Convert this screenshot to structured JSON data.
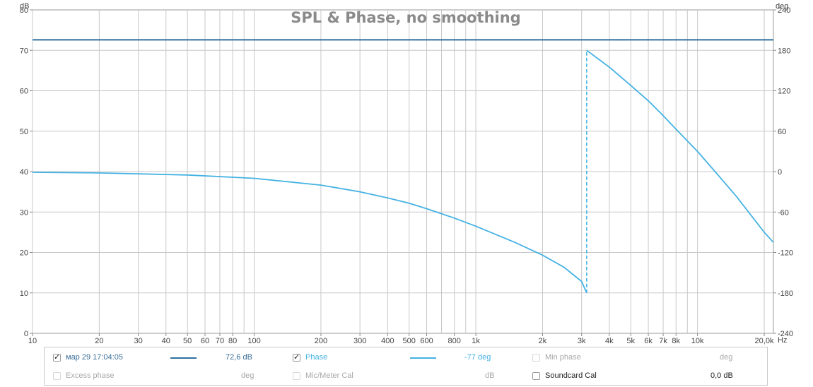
{
  "chart_data": {
    "type": "line",
    "title": "SPL & Phase, no smoothing",
    "x_scale": "log",
    "x_unit": "Hz",
    "xlim": [
      10,
      22000
    ],
    "x_ticks": [
      {
        "v": 10,
        "l": "10"
      },
      {
        "v": 20,
        "l": "20"
      },
      {
        "v": 30,
        "l": "30"
      },
      {
        "v": 40,
        "l": "40"
      },
      {
        "v": 50,
        "l": "50"
      },
      {
        "v": 60,
        "l": "60"
      },
      {
        "v": 70,
        "l": "70"
      },
      {
        "v": 80,
        "l": "80"
      },
      {
        "v": 100,
        "l": "100"
      },
      {
        "v": 200,
        "l": "200"
      },
      {
        "v": 300,
        "l": "300"
      },
      {
        "v": 400,
        "l": "400"
      },
      {
        "v": 500,
        "l": "500"
      },
      {
        "v": 600,
        "l": "600"
      },
      {
        "v": 800,
        "l": "800"
      },
      {
        "v": 1000,
        "l": "1k"
      },
      {
        "v": 2000,
        "l": "2k"
      },
      {
        "v": 3000,
        "l": "3k"
      },
      {
        "v": 4000,
        "l": "4k"
      },
      {
        "v": 5000,
        "l": "5k"
      },
      {
        "v": 6000,
        "l": "6k"
      },
      {
        "v": 7000,
        "l": "7k"
      },
      {
        "v": 8000,
        "l": "8k"
      },
      {
        "v": 10000,
        "l": "10k"
      },
      {
        "v": 20000,
        "l": "20,0k"
      }
    ],
    "x_gridlines": [
      10,
      20,
      30,
      40,
      50,
      60,
      70,
      80,
      90,
      100,
      200,
      300,
      400,
      500,
      600,
      700,
      800,
      900,
      1000,
      2000,
      3000,
      4000,
      5000,
      6000,
      7000,
      8000,
      9000,
      10000,
      20000
    ],
    "left_axis": {
      "unit": "dB",
      "ylim": [
        0,
        80
      ],
      "ticks": [
        0,
        10,
        20,
        30,
        40,
        50,
        60,
        70,
        80
      ]
    },
    "right_axis": {
      "unit": "deg",
      "ylim": [
        -240,
        240
      ],
      "ticks": [
        -240,
        -180,
        -120,
        -60,
        0,
        60,
        120,
        180,
        240
      ]
    },
    "series": [
      {
        "name": "мар 29 17:04:05",
        "axis": "left",
        "color": "#2e6f9e",
        "x": [
          10,
          22000
        ],
        "y": [
          72.6,
          72.6
        ]
      },
      {
        "name": "Phase",
        "axis": "right",
        "color": "#45b2e3",
        "wrap": "unwrapped-at-discontinuity",
        "x": [
          10,
          20,
          50,
          100,
          200,
          300,
          400,
          500,
          600,
          800,
          1000,
          1500,
          2000,
          2500,
          3000,
          3162,
          3162,
          4000,
          5000,
          6000,
          7000,
          8000,
          10000,
          12000,
          15000,
          20000,
          22000
        ],
        "y": [
          -1,
          -2,
          -5,
          -10,
          -20,
          -30,
          -39,
          -47,
          -55,
          -69,
          -81,
          -105,
          -124,
          -142,
          -163,
          -180,
          180,
          155,
          128,
          105,
          83,
          63,
          30,
          0,
          -37,
          -90,
          -105
        ]
      }
    ]
  },
  "legend": {
    "row1": {
      "meas_checked": "✓",
      "meas_label": "мар 29 17:04:05",
      "meas_value": "72,6 dB",
      "meas_color": "#2e6f9e",
      "phase_checked": "✓",
      "phase_label": "Phase",
      "phase_value": "-77 deg",
      "phase_color": "#45b2e3",
      "minphase_label": "Min phase",
      "minphase_unit": "deg"
    },
    "row2": {
      "excess_label": "Excess phase",
      "excess_unit": "deg",
      "mic_label": "Mic/Meter Cal",
      "mic_unit": "dB",
      "sound_label": "Soundcard Cal",
      "sound_value": "0,0 dB"
    }
  }
}
